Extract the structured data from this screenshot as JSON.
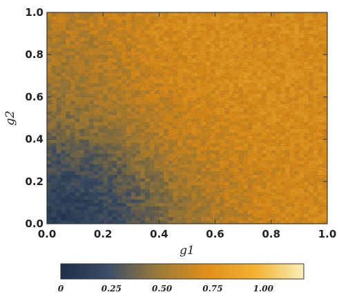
{
  "chart_data": {
    "type": "heatmap",
    "xlabel": "g1",
    "ylabel": "g2",
    "xlim": [
      0,
      1
    ],
    "ylim": [
      0,
      1
    ],
    "x_ticks": [
      "0.0",
      "0.2",
      "0.4",
      "0.6",
      "0.8",
      "1.0"
    ],
    "y_ticks": [
      "0.0",
      "0.2",
      "0.4",
      "0.6",
      "0.8",
      "1.0"
    ],
    "x_tick_values": [
      0,
      0.2,
      0.4,
      0.6,
      0.8,
      1.0
    ],
    "y_tick_values": [
      0,
      0.2,
      0.4,
      0.6,
      0.8,
      1.0
    ],
    "colorbar": {
      "range": [
        0,
        1.2
      ],
      "ticks": [
        "0",
        "0.25",
        "0.50",
        "0.75",
        "1.00"
      ],
      "tick_values": [
        0,
        0.25,
        0.5,
        0.75,
        1.0
      ],
      "colors": [
        "#1c2e4a",
        "#3c4f66",
        "#9a7a3a",
        "#e08f1a",
        "#f3b230",
        "#f8efb8"
      ]
    },
    "grid": false,
    "legend": "colorbar-bottom",
    "x": [
      0.05,
      0.15,
      0.25,
      0.35,
      0.45,
      0.55,
      0.65,
      0.75,
      0.85,
      0.95
    ],
    "y": [
      0.05,
      0.15,
      0.25,
      0.35,
      0.45,
      0.55,
      0.65,
      0.75,
      0.85,
      0.95
    ],
    "z": [
      [
        0.15,
        0.18,
        0.25,
        0.35,
        0.45,
        0.55,
        0.62,
        0.68,
        0.72,
        0.74
      ],
      [
        0.18,
        0.22,
        0.28,
        0.38,
        0.5,
        0.58,
        0.65,
        0.7,
        0.72,
        0.74
      ],
      [
        0.25,
        0.28,
        0.35,
        0.45,
        0.55,
        0.62,
        0.66,
        0.7,
        0.74,
        0.74
      ],
      [
        0.32,
        0.36,
        0.42,
        0.52,
        0.6,
        0.66,
        0.7,
        0.72,
        0.74,
        0.75
      ],
      [
        0.42,
        0.45,
        0.52,
        0.58,
        0.64,
        0.7,
        0.72,
        0.74,
        0.76,
        0.74
      ],
      [
        0.48,
        0.52,
        0.56,
        0.62,
        0.68,
        0.72,
        0.74,
        0.76,
        0.76,
        0.75
      ],
      [
        0.52,
        0.55,
        0.6,
        0.65,
        0.7,
        0.74,
        0.76,
        0.77,
        0.76,
        0.75
      ],
      [
        0.55,
        0.58,
        0.62,
        0.68,
        0.72,
        0.75,
        0.76,
        0.77,
        0.76,
        0.76
      ],
      [
        0.58,
        0.6,
        0.65,
        0.7,
        0.73,
        0.75,
        0.76,
        0.76,
        0.77,
        0.76
      ],
      [
        0.62,
        0.64,
        0.68,
        0.72,
        0.74,
        0.75,
        0.76,
        0.76,
        0.76,
        0.76
      ]
    ]
  }
}
